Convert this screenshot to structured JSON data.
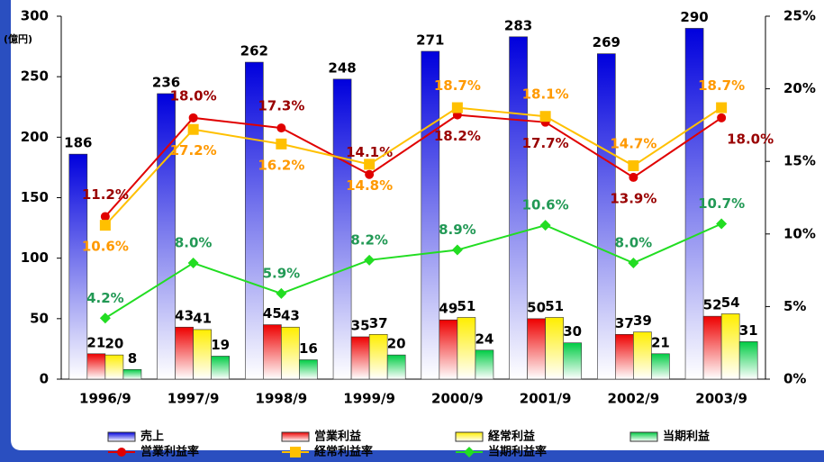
{
  "chart_data": {
    "type": "bar",
    "y_label": "(億円)",
    "categories": [
      "1996/9",
      "1997/9",
      "1998/9",
      "1999/9",
      "2000/9",
      "2001/9",
      "2002/9",
      "2003/9"
    ],
    "ylim": [
      0,
      300
    ],
    "yticks": [
      0,
      50,
      100,
      150,
      200,
      250,
      300
    ],
    "y2lim": [
      0,
      25
    ],
    "y2ticks": [
      {
        "value": 0,
        "label": "0%"
      },
      {
        "value": 5,
        "label": "5%"
      },
      {
        "value": 10,
        "label": "10%"
      },
      {
        "value": 15,
        "label": "15%"
      },
      {
        "value": 20,
        "label": "20%"
      },
      {
        "value": 25,
        "label": "25%"
      }
    ],
    "series": [
      {
        "name": "売上",
        "type": "bar",
        "color": "#0000dd",
        "values": [
          186,
          236,
          262,
          248,
          271,
          283,
          269,
          290
        ]
      },
      {
        "name": "営業利益",
        "type": "bar",
        "color": "#ee0000",
        "values": [
          21,
          43,
          45,
          35,
          49,
          50,
          37,
          52
        ]
      },
      {
        "name": "経常利益",
        "type": "bar",
        "color": "#ffee00",
        "values": [
          20,
          41,
          43,
          37,
          51,
          51,
          39,
          54
        ]
      },
      {
        "name": "当期利益",
        "type": "bar",
        "color": "#00cc44",
        "values": [
          8,
          19,
          16,
          20,
          24,
          30,
          21,
          31
        ]
      },
      {
        "name": "営業利益率",
        "type": "line",
        "axis": "y2",
        "color": "#e00000",
        "label_color": "#990000",
        "marker": "circle",
        "values": [
          11.2,
          18.0,
          17.3,
          14.1,
          18.2,
          17.7,
          13.9,
          18.0
        ],
        "value_labels": [
          "11.2%",
          "18.0%",
          "17.3%",
          "14.1%",
          "18.2%",
          "17.7%",
          "13.9%",
          "18.0%"
        ]
      },
      {
        "name": "経常利益率",
        "type": "line",
        "axis": "y2",
        "color": "#ffc000",
        "label_color": "#ff9900",
        "marker": "square",
        "values": [
          10.6,
          17.2,
          16.2,
          14.8,
          18.7,
          18.1,
          14.7,
          18.7
        ],
        "value_labels": [
          "10.6%",
          "17.2%",
          "16.2%",
          "14.8%",
          "18.7%",
          "18.1%",
          "14.7%",
          "18.7%"
        ]
      },
      {
        "name": "当期利益率",
        "type": "line",
        "axis": "y2",
        "color": "#22dd22",
        "label_color": "#229955",
        "marker": "diamond",
        "values": [
          4.2,
          8.0,
          5.9,
          8.2,
          8.9,
          10.6,
          8.0,
          10.7
        ],
        "value_labels": [
          "4.2%",
          "8.0%",
          "5.9%",
          "8.2%",
          "8.9%",
          "10.6%",
          "8.0%",
          "10.7%"
        ]
      }
    ]
  }
}
